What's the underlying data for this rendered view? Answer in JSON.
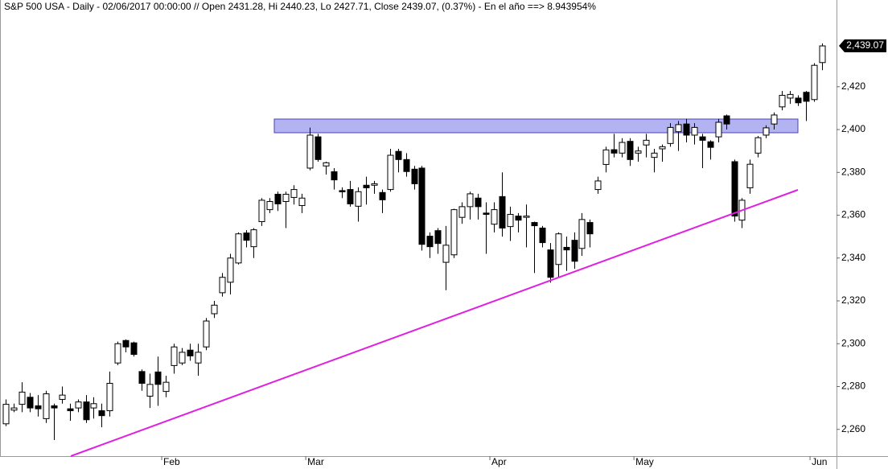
{
  "chart_data": {
    "type": "candlestick",
    "title": "S&P 500 USA - Daily - 02/06/2017 00:00:00 // Open 2431.28, Hi 2440.23, Lo 2427.71, Close 2439.07, (0.37%) - En el año ==> 8.943954%",
    "categories": [
      null,
      null,
      null,
      null,
      null,
      null,
      null,
      null,
      null,
      null,
      null,
      null,
      null,
      null,
      null,
      null,
      null,
      null,
      null,
      null,
      "Feb",
      null,
      null,
      null,
      null,
      null,
      null,
      null,
      null,
      null,
      null,
      null,
      null,
      null,
      null,
      null,
      null,
      null,
      "Mar",
      null,
      null,
      null,
      null,
      null,
      null,
      null,
      null,
      null,
      null,
      null,
      null,
      null,
      null,
      null,
      null,
      null,
      null,
      null,
      null,
      null,
      null,
      "Apr",
      null,
      null,
      null,
      null,
      null,
      null,
      null,
      null,
      null,
      null,
      null,
      null,
      null,
      null,
      null,
      null,
      null,
      "May",
      null,
      null,
      null,
      null,
      null,
      null,
      null,
      null,
      null,
      null,
      null,
      null,
      null,
      null,
      null,
      null,
      null,
      null,
      null,
      null,
      null,
      "Jun",
      null
    ],
    "open": [
      2262.6,
      2269,
      2271.7,
      2275,
      2271,
      2265,
      2271,
      2274,
      2269.6,
      2270,
      2272.8,
      2270,
      2268.7,
      2268.7,
      2291,
      2301.5,
      2300.4,
      2287,
      2275.5,
      2286.8,
      2277.7,
      2289.8,
      2291,
      2297,
      2291,
      2298.5,
      2314,
      2323.8,
      2328.7,
      2337.7,
      2351.7,
      2345.3,
      2357,
      2362.6,
      2369.8,
      2366.4,
      2368.3,
      2364.5,
      2382,
      2396.6,
      2383,
      2380.3,
      2371.5,
      2372,
      2364.2,
      2374,
      2374,
      2370.6,
      2372,
      2389.8,
      2386,
      2381.5,
      2382,
      2350.2,
      2352.8,
      2338,
      2341.5,
      2359,
      2364,
      2368,
      2361,
      2355.8,
      2368.7,
      2354.7,
      2359.6,
      2359,
      2356.6,
      2354,
      2343.8,
      2337,
      2345,
      2348.3,
      2344.5,
      2356.6,
      2372,
      2383.7,
      2390.6,
      2389,
      2394.5,
      2389,
      2392.8,
      2387,
      2391,
      2393.5,
      2399,
      2402.6,
      2397.4,
      2396.6,
      2394.3,
      2396.6,
      2406.4,
      2385,
      2357.7,
      2372.8,
      2389,
      2397.4,
      2402.6,
      2410.6,
      2414.7,
      2414.7,
      2417.4,
      2414,
      2431.28
    ],
    "high": [
      2274,
      2272,
      2282,
      2277,
      2276,
      2278,
      2272,
      2280,
      2272,
      2274,
      2276,
      2275,
      2272,
      2287,
      2301,
      2302,
      2301,
      2288,
      2286,
      2294,
      2285,
      2300,
      2298,
      2300,
      2300,
      2312,
      2320,
      2333,
      2342,
      2352,
      2353,
      2354,
      2368,
      2368,
      2371,
      2371,
      2374,
      2370,
      2400.9,
      2398,
      2385,
      2382,
      2373,
      2376,
      2373,
      2378,
      2376,
      2372,
      2391,
      2391,
      2389,
      2383,
      2383,
      2352,
      2354,
      2355,
      2363,
      2366,
      2371,
      2370,
      2366,
      2366,
      2380,
      2364,
      2361,
      2365,
      2357,
      2355,
      2347,
      2352,
      2350,
      2352,
      2361,
      2358,
      2378,
      2392,
      2398,
      2396,
      2396,
      2392,
      2398,
      2391,
      2393,
      2403,
      2404,
      2405,
      2403,
      2398,
      2395,
      2405,
      2407,
      2386,
      2368,
      2386,
      2397,
      2402,
      2408,
      2418,
      2418,
      2416,
      2418,
      2431,
      2440.23
    ],
    "low": [
      2261.5,
      2268,
      2268,
      2268,
      2266,
      2263,
      2255,
      2272,
      2264,
      2268,
      2263,
      2265,
      2261,
      2266,
      2290,
      2296,
      2294,
      2278,
      2270,
      2271,
      2275,
      2286,
      2290,
      2292,
      2285,
      2297,
      2312,
      2322,
      2323,
      2337,
      2345,
      2340,
      2355,
      2361,
      2362,
      2354,
      2365,
      2361,
      2381,
      2385,
      2379,
      2372,
      2368,
      2364,
      2357,
      2365,
      2370,
      2361,
      2371,
      2380,
      2378,
      2372,
      2343.5,
      2340,
      2342,
      2325,
      2340,
      2356,
      2358,
      2358,
      2342,
      2352,
      2350,
      2348,
      2352,
      2345,
      2333,
      2345,
      2328.5,
      2331,
      2334,
      2335,
      2341,
      2345,
      2370,
      2380,
      2387,
      2387,
      2383,
      2385,
      2387,
      2380,
      2385,
      2392,
      2390,
      2394,
      2393,
      2382,
      2386,
      2394,
      2400,
      2357,
      2354,
      2370,
      2387,
      2396,
      2400,
      2409,
      2412,
      2411,
      2404,
      2413,
      2427.71
    ],
    "close": [
      2271.7,
      2270,
      2277.4,
      2270,
      2269.6,
      2276.6,
      2270,
      2276,
      2268.7,
      2272.8,
      2264.5,
      2272,
      2266.4,
      2281.5,
      2300,
      2298.5,
      2295,
      2281.5,
      2281,
      2281,
      2282,
      2298.5,
      2296,
      2294.3,
      2296,
      2310.6,
      2318,
      2331,
      2340,
      2351.3,
      2348.3,
      2353.2,
      2367,
      2366.4,
      2365.3,
      2369.8,
      2372,
      2368,
      2397.4,
      2386,
      2384.5,
      2376.5,
      2370.9,
      2365.3,
      2371,
      2372.8,
      2374.7,
      2367.2,
      2388,
      2386,
      2380.4,
      2374.7,
      2346.4,
      2345.3,
      2346.8,
      2346,
      2362.6,
      2364,
      2370,
      2364,
      2360.4,
      2362.6,
      2354,
      2360.4,
      2357.7,
      2359.6,
      2355.1,
      2347.2,
      2331,
      2351.3,
      2343.8,
      2338.5,
      2358,
      2351.3,
      2376,
      2390.5,
      2389,
      2394,
      2386,
      2390,
      2395,
      2389,
      2392,
      2401,
      2402.3,
      2397.4,
      2401,
      2395,
      2391.7,
      2403.4,
      2402.6,
      2359.6,
      2367,
      2383.8,
      2396.2,
      2400.8,
      2406.8,
      2416,
      2416.4,
      2412.5,
      2413.2,
      2430,
      2439.07
    ],
    "last_label": "2,439.07",
    "up_color": "#ffffff",
    "down_color": "#000000",
    "wick_color": "#000000",
    "ylim": [
      2247.5,
      2460.5
    ],
    "yticks": [
      {
        "value": 2260,
        "label": "2,260"
      },
      {
        "value": 2280,
        "label": "2,280"
      },
      {
        "value": 2300,
        "label": "2,300"
      },
      {
        "value": 2320,
        "label": "2,320"
      },
      {
        "value": 2340,
        "label": "2,340"
      },
      {
        "value": 2360,
        "label": "2,360"
      },
      {
        "value": 2380,
        "label": "2,380"
      },
      {
        "value": 2400,
        "label": "2,400"
      },
      {
        "value": 2420,
        "label": "2,420"
      }
    ],
    "grid": false
  }
}
